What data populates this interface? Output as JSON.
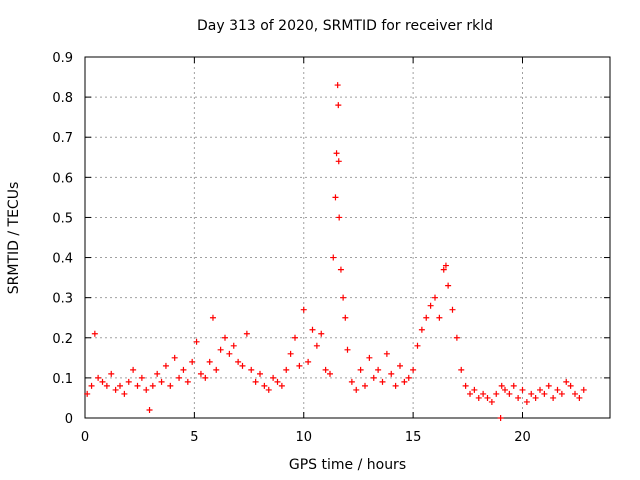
{
  "chart_data": {
    "type": "scatter",
    "title": "Day 313 of 2020, SRMTID for receiver rkld",
    "xlabel": "GPS time / hours",
    "ylabel": "SRMTID / TECUs",
    "xlim": [
      0,
      24
    ],
    "ylim": [
      0,
      0.9
    ],
    "xticks": [
      0,
      5,
      10,
      15,
      20
    ],
    "yticks": [
      0,
      0.1,
      0.2,
      0.3,
      0.4,
      0.5,
      0.6,
      0.7,
      0.8,
      0.9
    ],
    "grid": true,
    "marker": "+",
    "color": "#ff0000",
    "series": [
      {
        "name": "SRMTID",
        "x": [
          0.1,
          0.3,
          0.45,
          0.6,
          0.8,
          1.0,
          1.2,
          1.4,
          1.6,
          1.8,
          2.0,
          2.2,
          2.4,
          2.6,
          2.8,
          2.95,
          3.1,
          3.3,
          3.5,
          3.7,
          3.9,
          4.1,
          4.3,
          4.5,
          4.7,
          4.9,
          5.1,
          5.3,
          5.5,
          5.7,
          5.85,
          6.0,
          6.2,
          6.4,
          6.6,
          6.8,
          7.0,
          7.2,
          7.4,
          7.6,
          7.8,
          8.0,
          8.2,
          8.4,
          8.6,
          8.8,
          9.0,
          9.2,
          9.4,
          9.6,
          9.8,
          10.0,
          10.2,
          10.4,
          10.6,
          10.8,
          11.0,
          11.2,
          11.35,
          11.45,
          11.5,
          11.55,
          11.58,
          11.6,
          11.62,
          11.7,
          11.8,
          11.9,
          12.0,
          12.2,
          12.4,
          12.6,
          12.8,
          13.0,
          13.2,
          13.4,
          13.6,
          13.8,
          14.0,
          14.2,
          14.4,
          14.6,
          14.8,
          15.0,
          15.2,
          15.4,
          15.6,
          15.8,
          16.0,
          16.2,
          16.4,
          16.5,
          16.6,
          16.8,
          17.0,
          17.2,
          17.4,
          17.6,
          17.8,
          18.0,
          18.2,
          18.4,
          18.6,
          18.8,
          19.0,
          19.05,
          19.2,
          19.4,
          19.6,
          19.8,
          20.0,
          20.2,
          20.4,
          20.6,
          20.8,
          21.0,
          21.2,
          21.4,
          21.6,
          21.8,
          22.0,
          22.2,
          22.4,
          22.6,
          22.8
        ],
        "y": [
          0.06,
          0.08,
          0.21,
          0.1,
          0.09,
          0.08,
          0.11,
          0.07,
          0.08,
          0.06,
          0.09,
          0.12,
          0.08,
          0.1,
          0.07,
          0.02,
          0.08,
          0.11,
          0.09,
          0.13,
          0.08,
          0.15,
          0.1,
          0.12,
          0.09,
          0.14,
          0.19,
          0.11,
          0.1,
          0.14,
          0.25,
          0.12,
          0.17,
          0.2,
          0.16,
          0.18,
          0.14,
          0.13,
          0.21,
          0.12,
          0.09,
          0.11,
          0.08,
          0.07,
          0.1,
          0.09,
          0.08,
          0.12,
          0.16,
          0.2,
          0.13,
          0.27,
          0.14,
          0.22,
          0.18,
          0.21,
          0.12,
          0.11,
          0.4,
          0.55,
          0.66,
          0.83,
          0.78,
          0.64,
          0.5,
          0.37,
          0.3,
          0.25,
          0.17,
          0.09,
          0.07,
          0.12,
          0.08,
          0.15,
          0.1,
          0.12,
          0.09,
          0.16,
          0.11,
          0.08,
          0.13,
          0.09,
          0.1,
          0.12,
          0.18,
          0.22,
          0.25,
          0.28,
          0.3,
          0.25,
          0.37,
          0.38,
          0.33,
          0.27,
          0.2,
          0.12,
          0.08,
          0.06,
          0.07,
          0.05,
          0.06,
          0.05,
          0.04,
          0.06,
          0.0,
          0.08,
          0.07,
          0.06,
          0.08,
          0.05,
          0.07,
          0.04,
          0.06,
          0.05,
          0.07,
          0.06,
          0.08,
          0.05,
          0.07,
          0.06,
          0.09,
          0.08,
          0.06,
          0.05,
          0.07
        ]
      }
    ]
  }
}
